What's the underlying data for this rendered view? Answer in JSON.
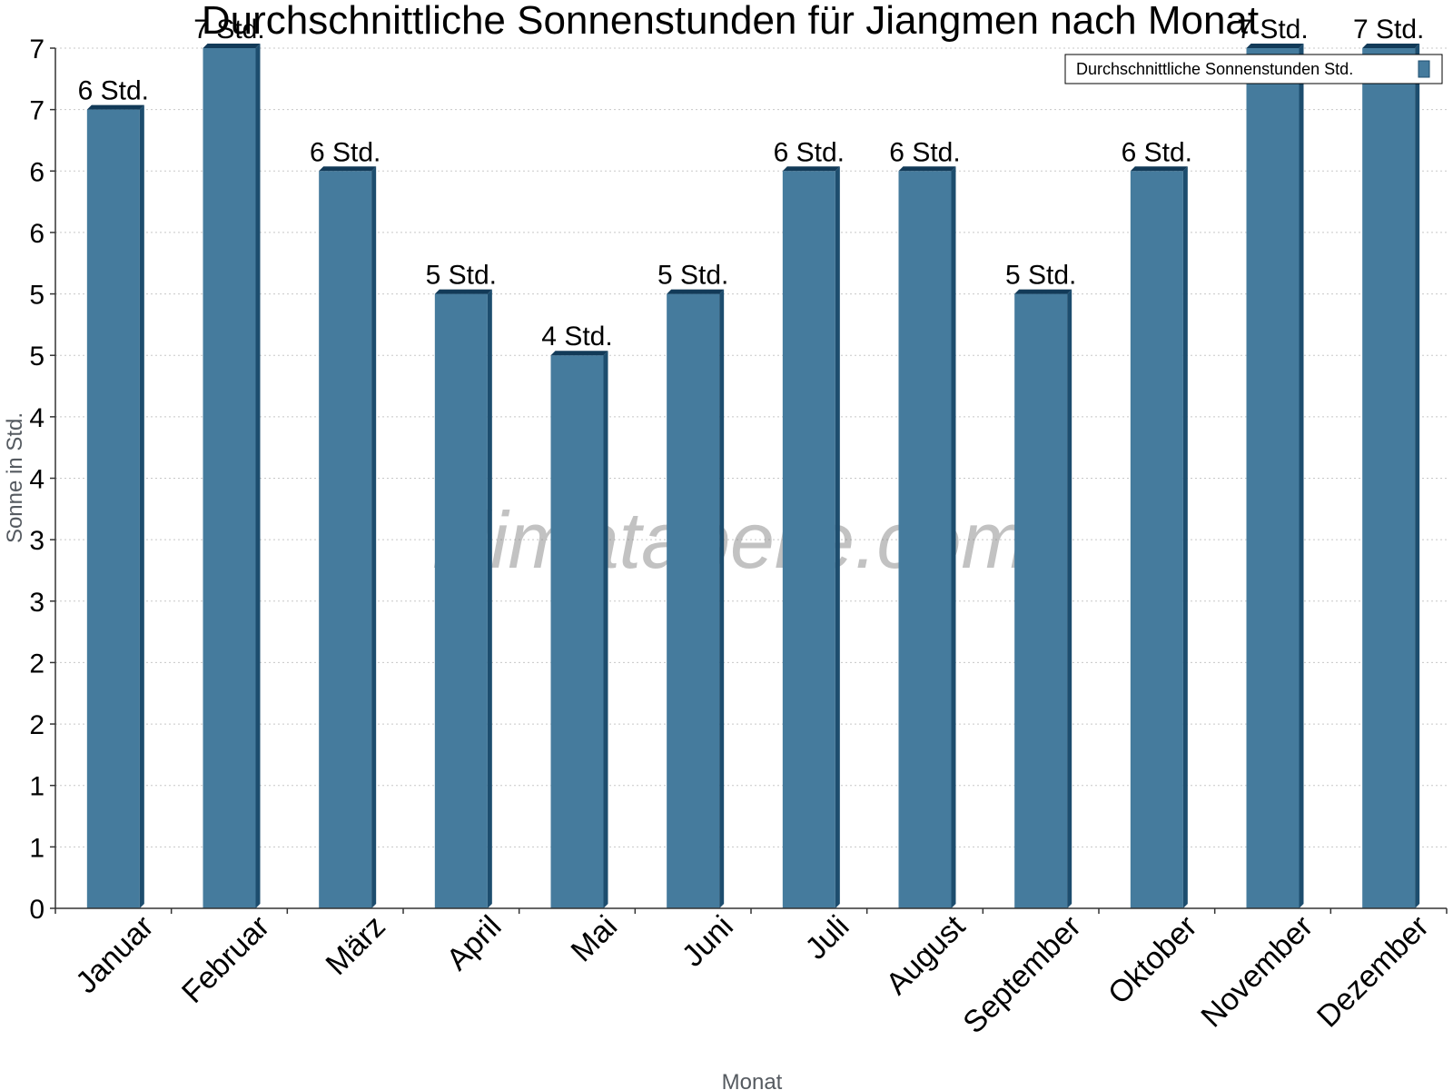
{
  "chart_data": {
    "type": "bar",
    "title": "Durchschnittliche Sonnenstunden für Jiangmen nach Monat",
    "xlabel": "Monat",
    "ylabel": "Sonne in Std.",
    "categories": [
      "Januar",
      "Februar",
      "März",
      "April",
      "Mai",
      "Juni",
      "Juli",
      "August",
      "September",
      "Oktober",
      "November",
      "Dezember"
    ],
    "series": [
      {
        "name": "Durchschnittliche Sonnenstunden Std.",
        "values": [
          6.5,
          7.0,
          6.0,
          5.0,
          4.5,
          5.0,
          6.0,
          6.0,
          5.0,
          6.0,
          7.0,
          7.0
        ],
        "data_labels": [
          "6 Std.",
          "7 Std.",
          "6 Std.",
          "5 Std.",
          "4 Std.",
          "5 Std.",
          "6 Std.",
          "6 Std.",
          "5 Std.",
          "6 Std.",
          "7 Std.",
          "7 Std."
        ],
        "color": "#457b9d"
      }
    ],
    "y_ticks": [
      0,
      0.5,
      1,
      1.5,
      2,
      2.5,
      3,
      3.5,
      4,
      4.5,
      5,
      5.5,
      6,
      6.5,
      7
    ],
    "y_tick_labels": [
      "0",
      "1",
      "1",
      "2",
      "2",
      "3",
      "3",
      "4",
      "4",
      "5",
      "5",
      "6",
      "6",
      "7",
      "7"
    ],
    "ylim": [
      0,
      7
    ],
    "grid": true,
    "legend": "top-right",
    "watermark": "klimatabelle.com",
    "colors": {
      "bar": "#457b9d",
      "bar_side": "#1d4d6e",
      "bar_top": "#123a58",
      "grid": "#c8c8c8",
      "axis": "#333333"
    }
  }
}
